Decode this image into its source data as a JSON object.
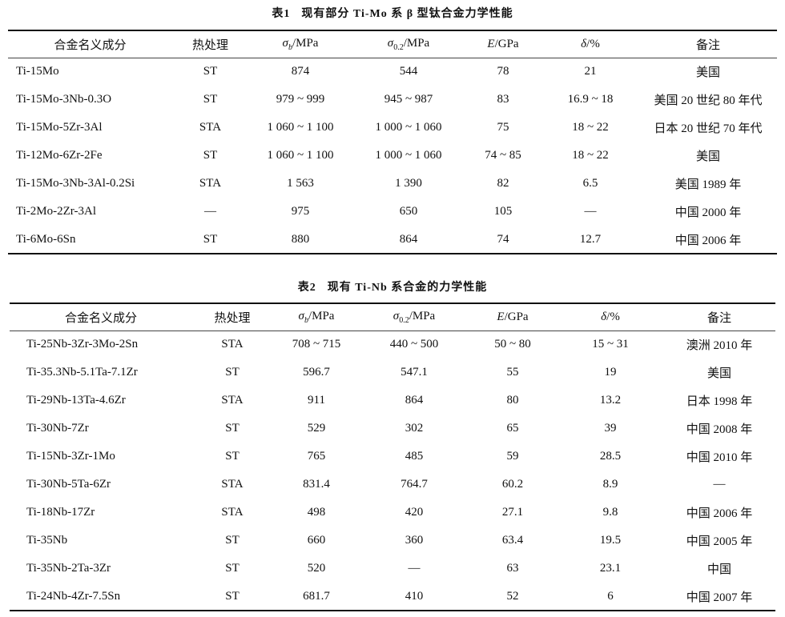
{
  "tables": [
    {
      "number": "表1",
      "title": "现有部分 Ti-Mo 系 β 型钛合金力学性能",
      "headers": {
        "name": "合金名义成分",
        "treatment": "热处理",
        "sigma_b": {
          "symbol": "σ",
          "sub": "b",
          "unit": "/MPa"
        },
        "sigma_02": {
          "symbol": "σ",
          "sub": "0.2",
          "unit": "/MPa"
        },
        "e": {
          "symbol": "E",
          "unit": "/GPa"
        },
        "delta": {
          "symbol": "δ",
          "unit": "/%"
        },
        "note": "备注"
      },
      "rows": [
        [
          "Ti-15Mo",
          "ST",
          "874",
          "544",
          "78",
          "21",
          "美国"
        ],
        [
          "Ti-15Mo-3Nb-0.3O",
          "ST",
          "979 ~ 999",
          "945 ~ 987",
          "83",
          "16.9 ~ 18",
          "美国 20 世纪 80 年代"
        ],
        [
          "Ti-15Mo-5Zr-3Al",
          "STA",
          "1 060 ~ 1 100",
          "1 000 ~ 1 060",
          "75",
          "18 ~ 22",
          "日本 20 世纪 70 年代"
        ],
        [
          "Ti-12Mo-6Zr-2Fe",
          "ST",
          "1 060 ~ 1 100",
          "1 000 ~ 1 060",
          "74 ~ 85",
          "18 ~ 22",
          "美国"
        ],
        [
          "Ti-15Mo-3Nb-3Al-0.2Si",
          "STA",
          "1 563",
          "1 390",
          "82",
          "6.5",
          "美国 1989 年"
        ],
        [
          "Ti-2Mo-2Zr-3Al",
          "—",
          "975",
          "650",
          "105",
          "—",
          "中国 2000 年"
        ],
        [
          "Ti-6Mo-6Sn",
          "ST",
          "880",
          "864",
          "74",
          "12.7",
          "中国 2006 年"
        ]
      ]
    },
    {
      "number": "表2",
      "title": "现有 Ti-Nb 系合金的力学性能",
      "headers": {
        "name": "合金名义成分",
        "treatment": "热处理",
        "sigma_b": {
          "symbol": "σ",
          "sub": "b",
          "unit": "/MPa"
        },
        "sigma_02": {
          "symbol": "σ",
          "sub": "0.2",
          "unit": "/MPa"
        },
        "e": {
          "symbol": "E",
          "unit": "/GPa"
        },
        "delta": {
          "symbol": "δ",
          "unit": "/%"
        },
        "note": "备注"
      },
      "rows": [
        [
          "Ti-25Nb-3Zr-3Mo-2Sn",
          "STA",
          "708 ~ 715",
          "440 ~ 500",
          "50 ~ 80",
          "15 ~ 31",
          "澳洲 2010 年"
        ],
        [
          "Ti-35.3Nb-5.1Ta-7.1Zr",
          "ST",
          "596.7",
          "547.1",
          "55",
          "19",
          "美国"
        ],
        [
          "Ti-29Nb-13Ta-4.6Zr",
          "STA",
          "911",
          "864",
          "80",
          "13.2",
          "日本 1998 年"
        ],
        [
          "Ti-30Nb-7Zr",
          "ST",
          "529",
          "302",
          "65",
          "39",
          "中国 2008 年"
        ],
        [
          "Ti-15Nb-3Zr-1Mo",
          "ST",
          "765",
          "485",
          "59",
          "28.5",
          "中国 2010 年"
        ],
        [
          "Ti-30Nb-5Ta-6Zr",
          "STA",
          "831.4",
          "764.7",
          "60.2",
          "8.9",
          "—"
        ],
        [
          "Ti-18Nb-17Zr",
          "STA",
          "498",
          "420",
          "27.1",
          "9.8",
          "中国 2006 年"
        ],
        [
          "Ti-35Nb",
          "ST",
          "660",
          "360",
          "63.4",
          "19.5",
          "中国 2005 年"
        ],
        [
          "Ti-35Nb-2Ta-3Zr",
          "ST",
          "520",
          "—",
          "63",
          "23.1",
          "中国"
        ],
        [
          "Ti-24Nb-4Zr-7.5Sn",
          "ST",
          "681.7",
          "410",
          "52",
          "6",
          "中国 2007 年"
        ]
      ]
    }
  ]
}
